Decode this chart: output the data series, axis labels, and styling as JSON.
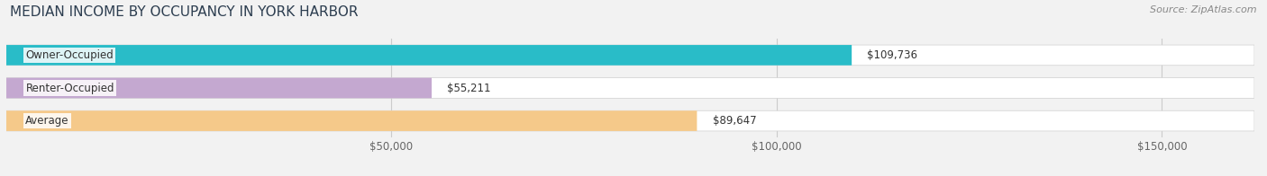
{
  "title": "MEDIAN INCOME BY OCCUPANCY IN YORK HARBOR",
  "source": "Source: ZipAtlas.com",
  "categories": [
    "Owner-Occupied",
    "Renter-Occupied",
    "Average"
  ],
  "values": [
    109736,
    55211,
    89647
  ],
  "labels": [
    "$109,736",
    "$55,211",
    "$89,647"
  ],
  "bar_colors": [
    "#29bcc8",
    "#c4a8d0",
    "#f5c98a"
  ],
  "background_color": "#f2f2f2",
  "bar_bg_color": "#e8e8e8",
  "xlim": [
    0,
    162000
  ],
  "xticks": [
    50000,
    100000,
    150000
  ],
  "xticklabels": [
    "$50,000",
    "$100,000",
    "$150,000"
  ],
  "title_fontsize": 11,
  "label_fontsize": 8.5,
  "tick_fontsize": 8.5,
  "source_fontsize": 8
}
